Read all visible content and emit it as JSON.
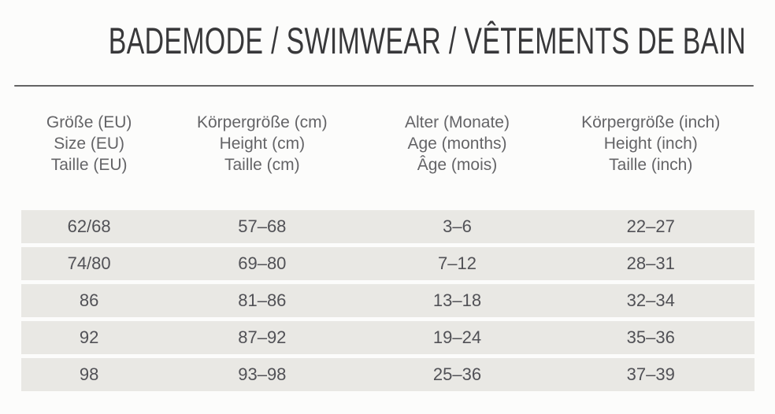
{
  "title": "BADEMODE / SWIMWEAR / VÊTEMENTS DE BAIN",
  "colors": {
    "page_background": "#fcfcfb",
    "row_band": "#e9e8e4",
    "title_text": "#38383a",
    "header_text": "#646467",
    "cell_text": "#515156",
    "divider": "#646464"
  },
  "table": {
    "columns": [
      {
        "id": "size-eu",
        "lines": [
          "Größe (EU)",
          "Size (EU)",
          "Taille (EU)"
        ]
      },
      {
        "id": "height-cm",
        "lines": [
          "Körpergröße (cm)",
          "Height (cm)",
          "Taille (cm)"
        ]
      },
      {
        "id": "age-months",
        "lines": [
          "Alter (Monate)",
          "Age (months)",
          "Âge (mois)"
        ]
      },
      {
        "id": "height-inch",
        "lines": [
          "Körpergröße (inch)",
          "Height (inch)",
          "Taille (inch)"
        ]
      }
    ],
    "rows": [
      [
        "62/68",
        "57–68",
        "3–6",
        "22–27"
      ],
      [
        "74/80",
        "69–80",
        "7–12",
        "28–31"
      ],
      [
        "86",
        "81–86",
        "13–18",
        "32–34"
      ],
      [
        "92",
        "87–92",
        "19–24",
        "35–36"
      ],
      [
        "98",
        "93–98",
        "25–36",
        "37–39"
      ]
    ]
  }
}
